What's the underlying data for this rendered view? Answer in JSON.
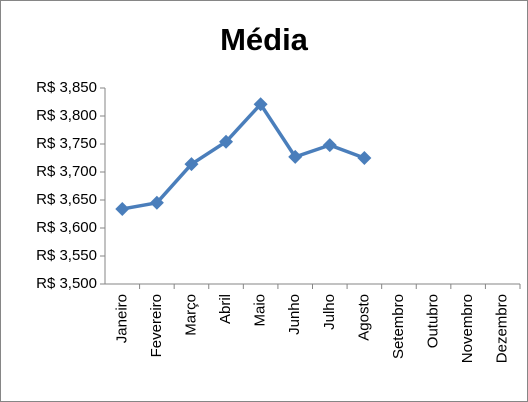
{
  "chart_data": {
    "type": "line",
    "title": "Média",
    "categories": [
      "Janeiro",
      "Fevereiro",
      "Março",
      "Abril",
      "Maio",
      "Junho",
      "Julho",
      "Agosto",
      "Setembro",
      "Outubro",
      "Novembro",
      "Dezembro"
    ],
    "values": [
      3634,
      3645,
      3714,
      3754,
      3821,
      3727,
      3748,
      3725,
      null,
      null,
      null,
      null
    ],
    "color": "#4a7ebb",
    "ylim": [
      3500,
      3850
    ],
    "yticks": [
      {
        "value": 3500,
        "label": "R$ 3,500"
      },
      {
        "value": 3550,
        "label": "R$ 3,550"
      },
      {
        "value": 3600,
        "label": "R$ 3,600"
      },
      {
        "value": 3650,
        "label": "R$ 3,650"
      },
      {
        "value": 3700,
        "label": "R$ 3,700"
      },
      {
        "value": 3750,
        "label": "R$ 3,750"
      },
      {
        "value": 3800,
        "label": "R$ 3,800"
      },
      {
        "value": 3850,
        "label": "R$ 3,850"
      }
    ],
    "grid": false
  }
}
